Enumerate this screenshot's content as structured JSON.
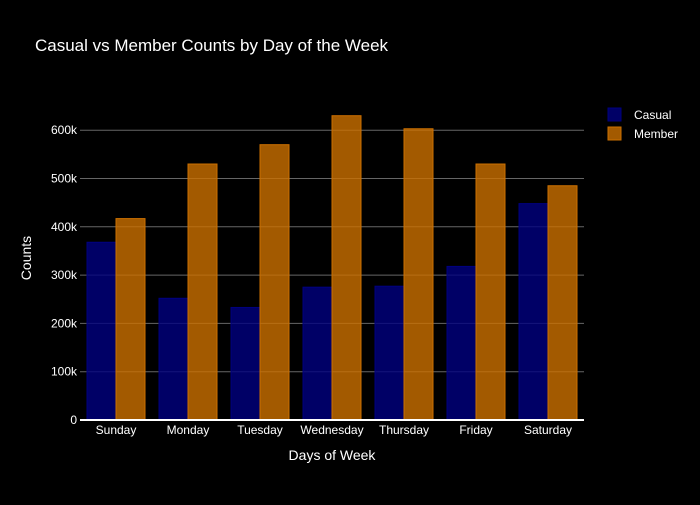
{
  "chart_data": {
    "type": "bar",
    "title": "Casual vs Member Counts by Day of the Week",
    "xlabel": "Days of Week",
    "ylabel": "Counts",
    "categories": [
      "Sunday",
      "Monday",
      "Tuesday",
      "Wednesday",
      "Thursday",
      "Friday",
      "Saturday"
    ],
    "series": [
      {
        "name": "Casual",
        "color": "#000080",
        "values": [
          368000,
          252000,
          233000,
          275000,
          277000,
          318000,
          448000
        ]
      },
      {
        "name": "Member",
        "color": "#cc7000",
        "values": [
          417000,
          530000,
          570000,
          630000,
          603000,
          530000,
          485000
        ]
      }
    ],
    "ylim": [
      0,
      600000
    ],
    "yticks": [
      0,
      100000,
      200000,
      300000,
      400000,
      500000,
      600000
    ],
    "ytick_labels": [
      "0",
      "100k",
      "200k",
      "300k",
      "400k",
      "500k",
      "600k"
    ],
    "grid": true,
    "legend_position": "top-right",
    "background": "#000000",
    "text_color": "#ffffff",
    "grid_color": "#666666"
  }
}
